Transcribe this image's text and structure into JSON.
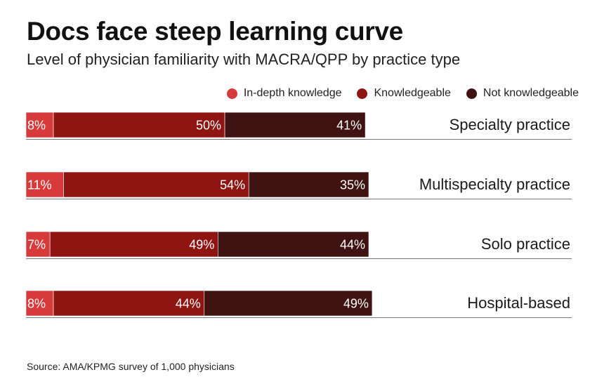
{
  "title": "Docs face steep learning curve",
  "subtitle": "Level of physician familiarity with MACRA/QPP by practice type",
  "source": "Source: AMA/KPMG survey of 1,000 physicians",
  "colors": {
    "in_depth": "#d63a3a",
    "knowledgeable": "#8e1512",
    "not_knowledgeable": "#3f1311",
    "rule": "#777777"
  },
  "chart_data": {
    "type": "bar",
    "orientation": "horizontal",
    "stacked": true,
    "unit": "%",
    "legend_position": "top-right",
    "categories": [
      "Specialty practice",
      "Multispecialty practice",
      "Solo practice",
      "Hospital-based"
    ],
    "series": [
      {
        "name": "In-depth knowledge",
        "values": [
          8,
          11,
          7,
          8
        ],
        "labels": [
          "8%",
          "11%",
          "7%",
          "8%"
        ]
      },
      {
        "name": "Knowledgeable",
        "values": [
          50,
          54,
          49,
          44
        ],
        "labels": [
          "50%",
          "54%",
          "49%",
          "44%"
        ]
      },
      {
        "name": "Not knowledgeable",
        "values": [
          41,
          35,
          44,
          49
        ],
        "labels": [
          "41%",
          "35%",
          "44%",
          "49%"
        ]
      }
    ]
  }
}
